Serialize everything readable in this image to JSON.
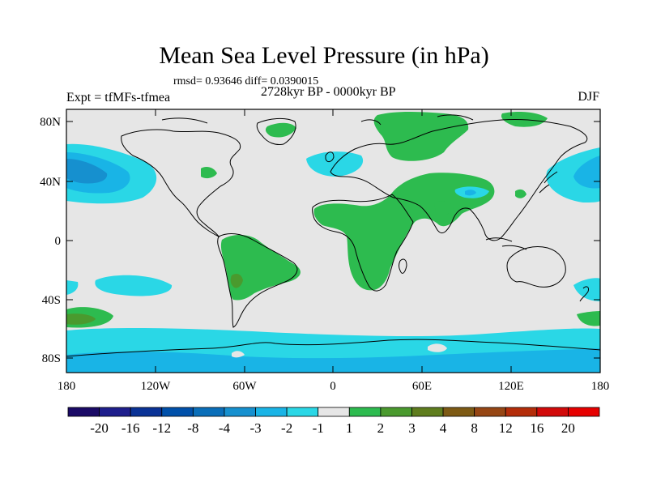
{
  "title": "Mean Sea Level Pressure (in hPa)",
  "stats_text": "rmsd= 0.93646 diff= 0.0390015",
  "period_text": "2728kyr BP - 0000kyr BP",
  "experiment_text": "Expt = tfMFs-tfmea",
  "season": "DJF",
  "axes": {
    "x_ticks": [
      "180",
      "120W",
      "60W",
      "0",
      "60E",
      "120E",
      "180"
    ],
    "y_ticks": [
      "80N",
      "40N",
      "0",
      "40S",
      "80S"
    ]
  },
  "colorbar": {
    "labels": [
      "-20",
      "-16",
      "-12",
      "-8",
      "-4",
      "-3",
      "-2",
      "-1",
      "1",
      "2",
      "3",
      "4",
      "8",
      "12",
      "16",
      "20"
    ],
    "colors": [
      "#1a0a66",
      "#1e1e8c",
      "#0a3296",
      "#0050aa",
      "#0a6eb9",
      "#1690cf",
      "#19b4e6",
      "#2ad7e6",
      "#e6e6e6",
      "#2dbb4f",
      "#4a9a2e",
      "#5f7d1e",
      "#7d5a14",
      "#964614",
      "#b42d0a",
      "#d20a0a",
      "#e60000"
    ]
  },
  "map_colors": {
    "neutral": "#e6e6e6",
    "green_light": "#2dbb4f",
    "green_dark": "#4a9a2e",
    "cyan": "#2ad7e6",
    "blue_light": "#19b4e6",
    "blue_mid": "#1690cf",
    "blue_dark": "#0a6eb9"
  }
}
